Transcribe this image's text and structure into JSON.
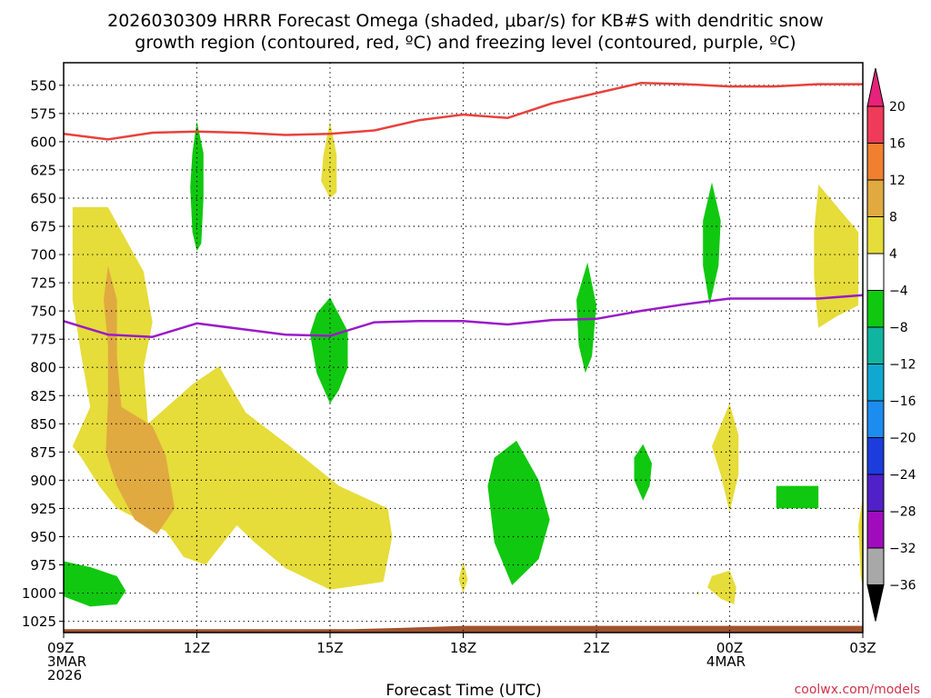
{
  "chart_data": {
    "type": "heatmap",
    "title_line1": "2026030309 HRRR Forecast Omega (shaded, μbar/s) for KB#S with dendritic snow",
    "title_line2": "growth region (contoured, red, ºC) and freezing level (contoured, purple, ºC)",
    "xlabel": "Forecast Time (UTC)",
    "credit": "coolwx.com/models",
    "y_axis": {
      "unit": "hPa",
      "ticks": [
        550,
        575,
        600,
        625,
        650,
        675,
        700,
        725,
        750,
        775,
        800,
        825,
        850,
        875,
        900,
        925,
        950,
        975,
        1000,
        1025
      ],
      "range": [
        1035,
        530
      ]
    },
    "x_axis": {
      "ticks": [
        {
          "hour": 0,
          "lines": [
            "09Z",
            "3MAR",
            "2026"
          ]
        },
        {
          "hour": 3,
          "lines": [
            "12Z"
          ]
        },
        {
          "hour": 6,
          "lines": [
            "15Z"
          ]
        },
        {
          "hour": 9,
          "lines": [
            "18Z"
          ]
        },
        {
          "hour": 12,
          "lines": [
            "21Z"
          ]
        },
        {
          "hour": 15,
          "lines": [
            "00Z",
            "4MAR"
          ]
        },
        {
          "hour": 18,
          "lines": [
            "03Z"
          ]
        }
      ],
      "range": [
        0,
        18
      ]
    },
    "colorbar": {
      "labels": [
        "20",
        "16",
        "12",
        "8",
        "4",
        "−4",
        "−8",
        "−12",
        "−16",
        "−20",
        "−24",
        "−28",
        "−32",
        "−36"
      ],
      "colors": [
        "#f03a5a",
        "#f08030",
        "#e0aa40",
        "#e6dc3a",
        "#ffffff",
        "#10c810",
        "#10b4a0",
        "#10a8d0",
        "#1c8cf0",
        "#1c3cdc",
        "#5020c8",
        "#a00cbc",
        "#a8a8a8"
      ],
      "top_triangle_color": "#e6227a",
      "bottom_triangle_color": "#000000"
    },
    "series": [
      {
        "color": "#e8413c",
        "x": [
          0,
          1,
          2,
          3,
          4,
          5,
          6,
          7,
          8,
          9,
          10,
          11,
          12,
          13,
          14,
          15,
          16,
          17,
          18
        ],
        "y": [
          593,
          598,
          592,
          591,
          592,
          594,
          593,
          590,
          581,
          576,
          579,
          566,
          557,
          548,
          549,
          551,
          551,
          549,
          549
        ]
      },
      {
        "color": "#9a1ac8",
        "x": [
          0,
          1,
          2,
          3,
          4,
          5,
          6,
          7,
          8,
          9,
          10,
          11,
          12,
          13,
          14,
          15,
          16,
          17,
          18
        ],
        "y": [
          759,
          771,
          773,
          761,
          766,
          771,
          772,
          760,
          759,
          759,
          762,
          758,
          757,
          750,
          744,
          739,
          739,
          739,
          736
        ]
      }
    ],
    "shaded_regions": [
      {
        "color": "#e6dc3a",
        "points": [
          [
            0.2,
            658
          ],
          [
            1.0,
            658
          ],
          [
            1.8,
            715
          ],
          [
            2.0,
            760
          ],
          [
            1.8,
            800
          ],
          [
            1.9,
            850
          ],
          [
            2.9,
            815
          ],
          [
            3.5,
            799
          ],
          [
            4.1,
            840
          ],
          [
            5.1,
            870
          ],
          [
            6.2,
            905
          ],
          [
            7.3,
            925
          ],
          [
            7.4,
            950
          ],
          [
            7.2,
            990
          ],
          [
            6.0,
            997
          ],
          [
            5.0,
            978
          ],
          [
            4.3,
            955
          ],
          [
            3.9,
            940
          ],
          [
            3.2,
            975
          ],
          [
            2.7,
            968
          ],
          [
            2.3,
            945
          ],
          [
            1.7,
            935
          ],
          [
            1.2,
            925
          ],
          [
            0.8,
            905
          ],
          [
            0.4,
            880
          ],
          [
            0.2,
            870
          ],
          [
            0.6,
            835
          ],
          [
            0.4,
            790
          ],
          [
            0.2,
            740
          ]
        ]
      },
      {
        "color": "#e0aa40",
        "points": [
          [
            1.0,
            710
          ],
          [
            1.2,
            740
          ],
          [
            1.2,
            790
          ],
          [
            1.3,
            835
          ],
          [
            2.0,
            852
          ],
          [
            2.3,
            878
          ],
          [
            2.5,
            925
          ],
          [
            2.1,
            948
          ],
          [
            1.6,
            935
          ],
          [
            1.2,
            905
          ],
          [
            0.95,
            875
          ],
          [
            1.0,
            830
          ],
          [
            1.0,
            780
          ],
          [
            0.9,
            740
          ]
        ]
      },
      {
        "color": "#e6dc3a",
        "points": [
          [
            6.0,
            582
          ],
          [
            6.15,
            612
          ],
          [
            6.15,
            645
          ],
          [
            6.0,
            650
          ],
          [
            5.8,
            635
          ],
          [
            5.85,
            612
          ]
        ]
      },
      {
        "color": "#e6dc3a",
        "points": [
          [
            17.0,
            638
          ],
          [
            17.9,
            680
          ],
          [
            17.9,
            745
          ],
          [
            17.4,
            755
          ],
          [
            17.0,
            765
          ],
          [
            16.9,
            720
          ],
          [
            16.9,
            680
          ]
        ]
      },
      {
        "color": "#e6dc3a",
        "points": [
          [
            15.0,
            832
          ],
          [
            15.2,
            860
          ],
          [
            15.2,
            895
          ],
          [
            15.0,
            928
          ],
          [
            14.8,
            895
          ],
          [
            14.6,
            870
          ]
        ]
      },
      {
        "color": "#e6dc3a",
        "points": [
          [
            15.0,
            980
          ],
          [
            15.15,
            995
          ],
          [
            15.1,
            1010
          ],
          [
            14.8,
            1005
          ],
          [
            14.5,
            995
          ],
          [
            14.6,
            985
          ]
        ]
      },
      {
        "color": "#e6dc3a",
        "points": [
          [
            9.0,
            972
          ],
          [
            9.1,
            988
          ],
          [
            9.0,
            1000
          ],
          [
            8.9,
            988
          ]
        ]
      },
      {
        "color": "#e6dc3a",
        "points": [
          [
            18.0,
            915
          ],
          [
            17.9,
            940
          ],
          [
            17.95,
            985
          ],
          [
            18.0,
            995
          ]
        ]
      },
      {
        "color": "#e6dc3a",
        "points": [
          [
            14.3,
            998
          ],
          [
            14.3,
            1002
          ],
          [
            14.25,
            1000
          ]
        ]
      },
      {
        "color": "#10c810",
        "points": [
          [
            3.0,
            582
          ],
          [
            3.15,
            610
          ],
          [
            3.15,
            650
          ],
          [
            3.1,
            690
          ],
          [
            3.0,
            697
          ],
          [
            2.9,
            680
          ],
          [
            2.85,
            640
          ],
          [
            2.9,
            610
          ]
        ]
      },
      {
        "color": "#10c810",
        "points": [
          [
            6.0,
            738
          ],
          [
            6.4,
            768
          ],
          [
            6.4,
            800
          ],
          [
            6.2,
            820
          ],
          [
            6.0,
            832
          ],
          [
            5.7,
            805
          ],
          [
            5.55,
            770
          ],
          [
            5.7,
            752
          ]
        ]
      },
      {
        "color": "#10c810",
        "points": [
          [
            11.8,
            707
          ],
          [
            12.0,
            745
          ],
          [
            11.9,
            790
          ],
          [
            11.75,
            805
          ],
          [
            11.6,
            780
          ],
          [
            11.55,
            740
          ]
        ]
      },
      {
        "color": "#10c810",
        "points": [
          [
            14.6,
            636
          ],
          [
            14.8,
            670
          ],
          [
            14.75,
            710
          ],
          [
            14.55,
            745
          ],
          [
            14.4,
            710
          ],
          [
            14.4,
            670
          ]
        ]
      },
      {
        "color": "#10c810",
        "points": [
          [
            13.05,
            868
          ],
          [
            13.25,
            885
          ],
          [
            13.2,
            905
          ],
          [
            13.05,
            918
          ],
          [
            12.85,
            900
          ],
          [
            12.85,
            880
          ]
        ]
      },
      {
        "color": "#10c810",
        "points": [
          [
            10.2,
            865
          ],
          [
            10.7,
            900
          ],
          [
            10.95,
            935
          ],
          [
            10.7,
            970
          ],
          [
            10.1,
            993
          ],
          [
            9.7,
            955
          ],
          [
            9.55,
            905
          ],
          [
            9.7,
            880
          ]
        ]
      },
      {
        "color": "#10c810",
        "points": [
          [
            16.05,
            905
          ],
          [
            17.0,
            905
          ],
          [
            17.0,
            925
          ],
          [
            16.05,
            925
          ]
        ]
      },
      {
        "color": "#10c810",
        "points": [
          [
            -0.2,
            970
          ],
          [
            0.6,
            977
          ],
          [
            1.2,
            985
          ],
          [
            1.4,
            998
          ],
          [
            1.2,
            1010
          ],
          [
            0.6,
            1012
          ],
          [
            -0.2,
            1000
          ],
          [
            -0.25,
            985
          ]
        ]
      }
    ],
    "terrain": {
      "color": "#a0522d",
      "top_hpa": [
        [
          0,
          1032
        ],
        [
          6.5,
          1032
        ],
        [
          7.5,
          1031
        ],
        [
          9,
          1029
        ],
        [
          18,
          1029
        ]
      ]
    },
    "grid": true
  }
}
